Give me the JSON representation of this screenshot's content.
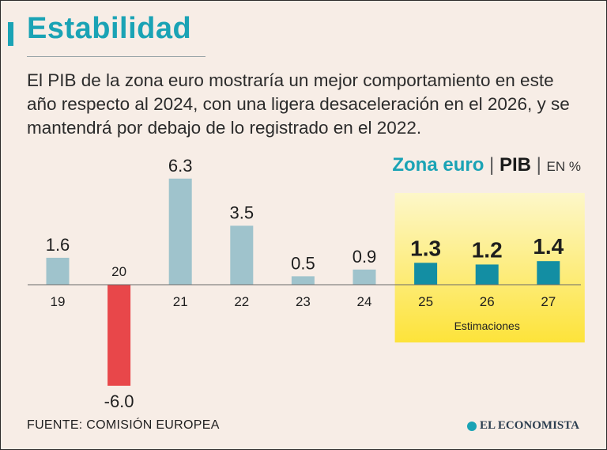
{
  "title": "Estabilidad",
  "subtitle": "El PIB de la zona euro mostraría un mejor comportamiento en este año respecto al 2024, con una ligera desaceleración en el 2026, y se mantendrá por debajo de lo registrado en el 2022.",
  "legend": {
    "zona": "Zona euro",
    "sep": "|",
    "pib": "PIB",
    "unit": "EN %"
  },
  "source": "FUENTE: COMISIÓN EUROPEA",
  "logo": "EL ECONOMISTA",
  "colors": {
    "accent": "#1aa3b5",
    "bar_historic": "#9fc3cc",
    "bar_negative": "#e8474a",
    "bar_estimate": "#138ea3",
    "highlight_top": "#fdf7c9",
    "highlight_bottom": "#fde33a"
  },
  "chart_data": {
    "type": "bar",
    "title": "Zona euro | PIB | EN %",
    "categories": [
      "19",
      "20",
      "21",
      "22",
      "23",
      "24",
      "25",
      "26",
      "27"
    ],
    "values": [
      1.6,
      -6.0,
      6.3,
      3.5,
      0.5,
      0.9,
      1.3,
      1.2,
      1.4
    ],
    "labels": [
      "1.6",
      "-6.0",
      "6.3",
      "3.5",
      "0.5",
      "0.9",
      "1.3",
      "1.2",
      "1.4"
    ],
    "estimates": [
      false,
      false,
      false,
      false,
      false,
      false,
      true,
      true,
      true
    ],
    "estimate_label": "Estimaciones",
    "ylim": [
      -6.0,
      6.3
    ],
    "grid": false
  }
}
